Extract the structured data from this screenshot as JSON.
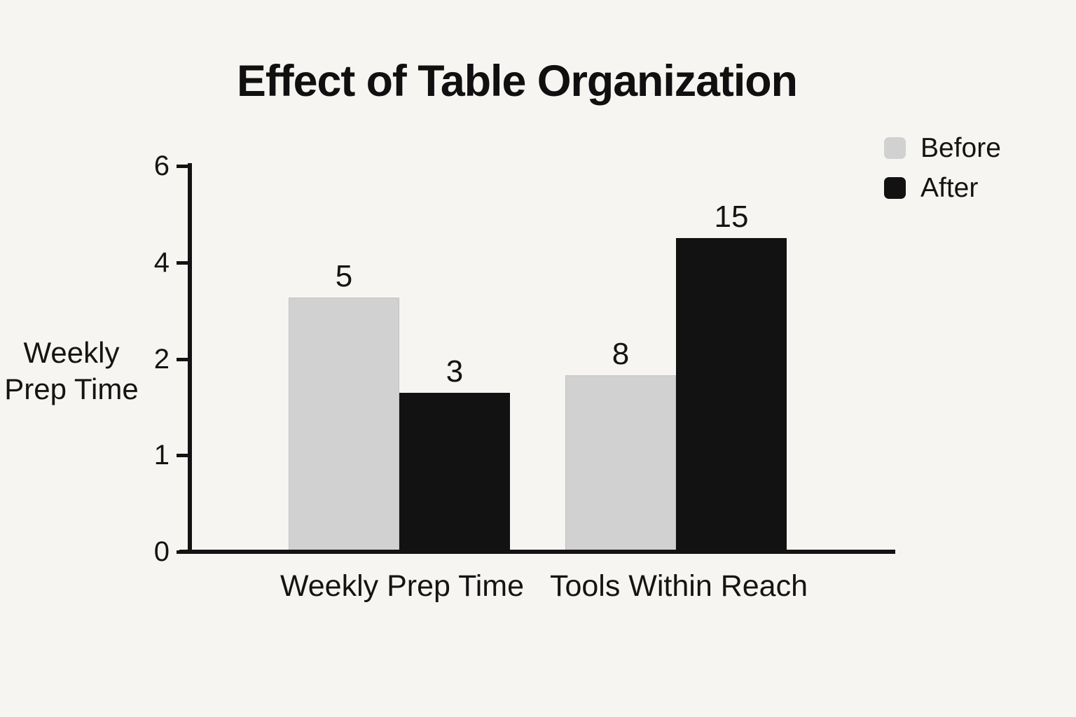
{
  "page": {
    "background": "#f7f5f1",
    "text_color": "#141414"
  },
  "chart_data": {
    "type": "bar",
    "title": "Effect of Table Organization",
    "ylabel": "Weekly Prep Time",
    "ylabel_lines": [
      "Weekly",
      "Prep Time"
    ],
    "categories": [
      "Weekly Prep Time",
      "Tools Within Reach"
    ],
    "series": [
      {
        "name": "Before",
        "color": "#d1d1d1",
        "values": [
          5,
          8
        ],
        "drawn_height_fractions": [
          0.654,
          0.452
        ]
      },
      {
        "name": "After",
        "color": "#121212",
        "values": [
          3,
          15
        ],
        "drawn_height_fractions": [
          0.406,
          0.807
        ]
      }
    ],
    "y_axis": {
      "tick_labels": [
        "0",
        "1",
        "2",
        "4",
        "6"
      ],
      "equally_spaced": true
    },
    "legend_position": "top-right",
    "grid": false,
    "axis_color": "#131313"
  }
}
